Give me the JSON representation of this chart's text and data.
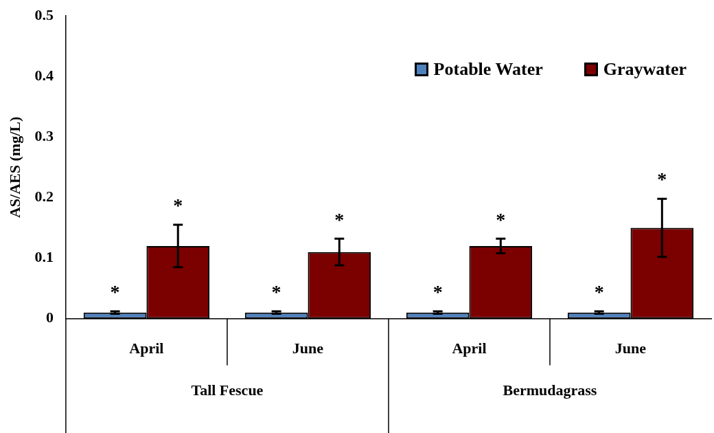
{
  "chart_data": {
    "type": "bar",
    "ylabel": "AS/AES (mg/L)",
    "categories": [
      "April",
      "June",
      "April",
      "June"
    ],
    "series": [
      {
        "name": "Potable Water",
        "color": "#4f81bd",
        "values": [
          0.01,
          0.01,
          0.01,
          0.01
        ],
        "errors": [
          0.002,
          0.002,
          0.002,
          0.002
        ],
        "value_labels": [
          "*",
          "*",
          "*",
          "*"
        ]
      },
      {
        "name": "Graywater",
        "color": "#7b0000",
        "values": [
          0.12,
          0.11,
          0.12,
          0.15
        ],
        "errors": [
          0.035,
          0.022,
          0.012,
          0.048
        ],
        "value_labels": [
          "*",
          "*",
          "*",
          "*"
        ]
      }
    ],
    "ylim": [
      0,
      0.5
    ],
    "yticks": [
      0,
      0.1,
      0.2,
      0.3,
      0.4,
      0.5
    ],
    "grid": false,
    "legend": "top right",
    "annotations": [
      "Tall Fescue",
      "Bermudagrass"
    ]
  }
}
